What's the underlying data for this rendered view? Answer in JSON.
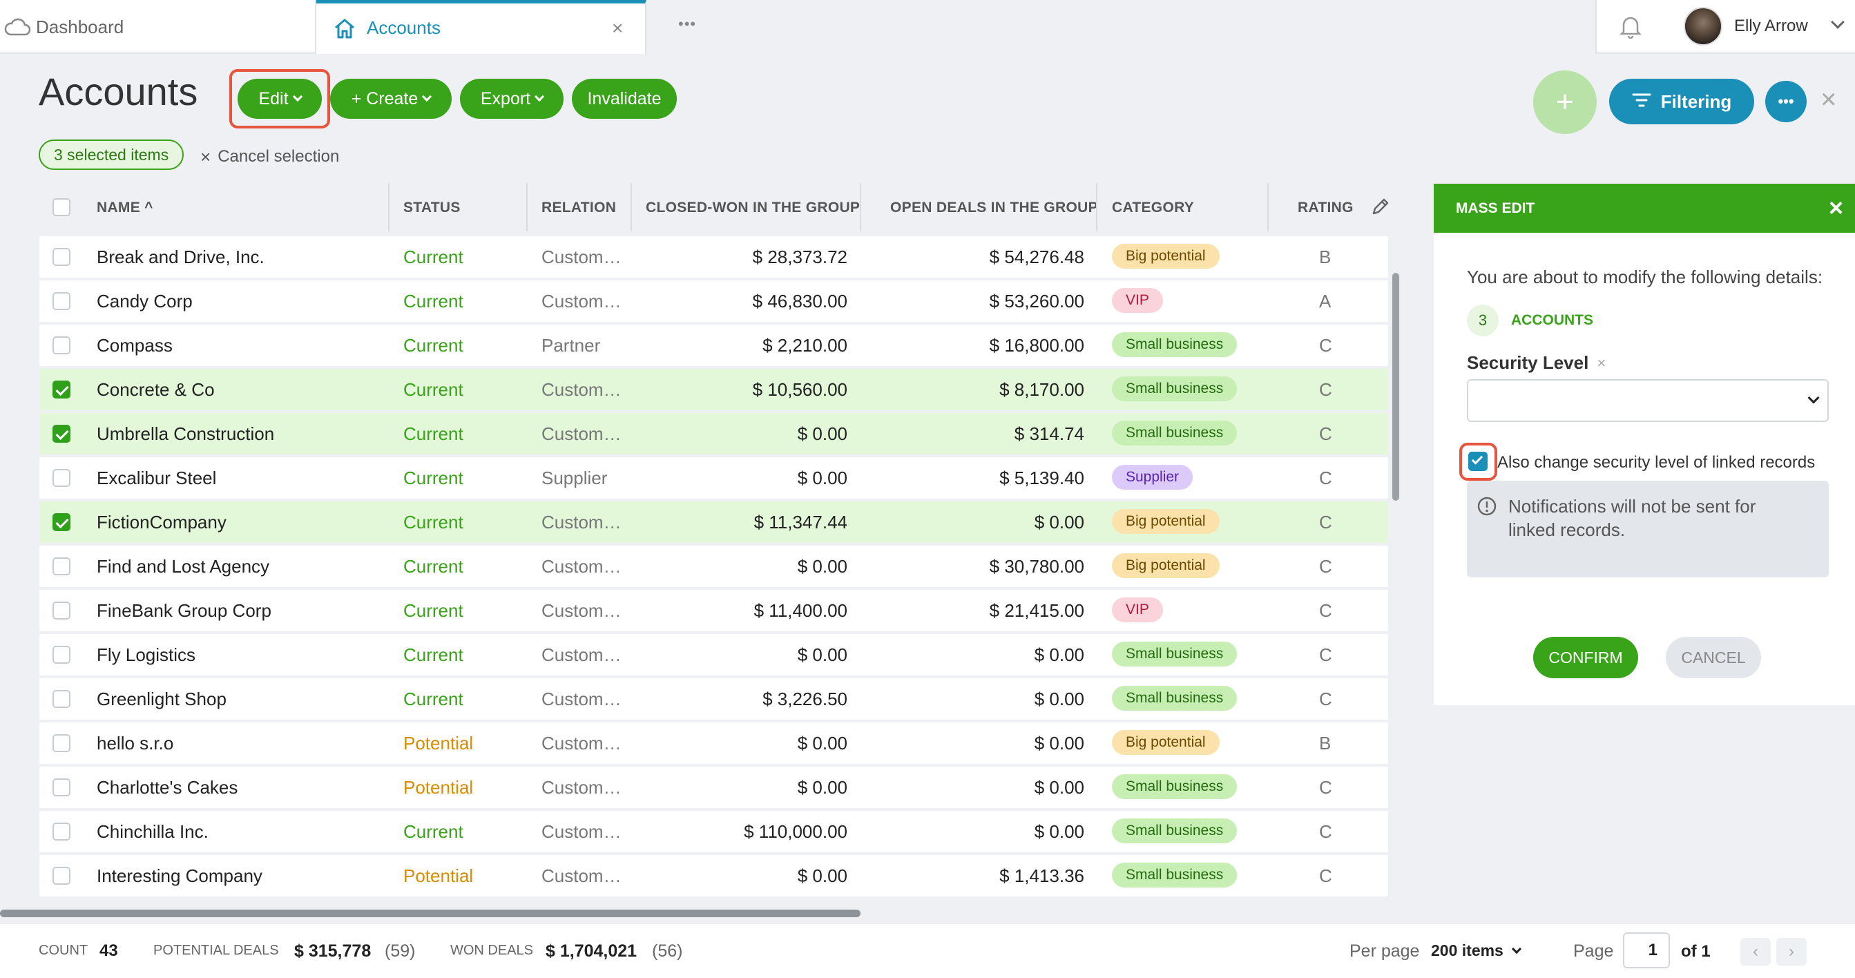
{
  "tabs": {
    "dashboard": "Dashboard",
    "accounts": "Accounts",
    "more": "•••"
  },
  "user": {
    "name": "Elly Arrow"
  },
  "page": {
    "title": "Accounts"
  },
  "toolbar": {
    "edit": "Edit",
    "create": "+ Create",
    "export": "Export",
    "invalidate": "Invalidate",
    "filtering": "Filtering"
  },
  "selection": {
    "count_label": "3 selected items",
    "cancel_label": "Cancel selection"
  },
  "columns": {
    "name": "NAME ^",
    "status": "STATUS",
    "relation": "RELATION",
    "closed_won": "CLOSED-WON IN THE GROUP",
    "open_deals": "OPEN DEALS IN THE GROUP",
    "category": "CATEGORY",
    "rating": "RATING"
  },
  "colors": {
    "accent_green": "#39a319",
    "accent_blue": "#1a8fb7",
    "highlight": "#e8553f",
    "selected_row": "#e3f7d9"
  },
  "rows": [
    {
      "name": "Break and Drive, Inc.",
      "status": "Current",
      "relation": "Custom…",
      "closed_won": "$ 28,373.72",
      "open_deals": "$ 54,276.48",
      "category": "Big potential",
      "rating": "B",
      "selected": false
    },
    {
      "name": "Candy Corp",
      "status": "Current",
      "relation": "Custom…",
      "closed_won": "$ 46,830.00",
      "open_deals": "$ 53,260.00",
      "category": "VIP",
      "rating": "A",
      "selected": false
    },
    {
      "name": "Compass",
      "status": "Current",
      "relation": "Partner",
      "closed_won": "$ 2,210.00",
      "open_deals": "$ 16,800.00",
      "category": "Small business",
      "rating": "C",
      "selected": false
    },
    {
      "name": "Concrete & Co",
      "status": "Current",
      "relation": "Custom…",
      "closed_won": "$ 10,560.00",
      "open_deals": "$ 8,170.00",
      "category": "Small business",
      "rating": "C",
      "selected": true
    },
    {
      "name": "Umbrella Construction",
      "status": "Current",
      "relation": "Custom…",
      "closed_won": "$ 0.00",
      "open_deals": "$ 314.74",
      "category": "Small business",
      "rating": "C",
      "selected": true
    },
    {
      "name": "Excalibur Steel",
      "status": "Current",
      "relation": "Supplier",
      "closed_won": "$ 0.00",
      "open_deals": "$ 5,139.40",
      "category": "Supplier",
      "rating": "C",
      "selected": false
    },
    {
      "name": "FictionCompany",
      "status": "Current",
      "relation": "Custom…",
      "closed_won": "$ 11,347.44",
      "open_deals": "$ 0.00",
      "category": "Big potential",
      "rating": "C",
      "selected": true
    },
    {
      "name": "Find and Lost Agency",
      "status": "Current",
      "relation": "Custom…",
      "closed_won": "$ 0.00",
      "open_deals": "$ 30,780.00",
      "category": "Big potential",
      "rating": "C",
      "selected": false
    },
    {
      "name": "FineBank Group Corp",
      "status": "Current",
      "relation": "Custom…",
      "closed_won": "$ 11,400.00",
      "open_deals": "$ 21,415.00",
      "category": "VIP",
      "rating": "C",
      "selected": false
    },
    {
      "name": "Fly Logistics",
      "status": "Current",
      "relation": "Custom…",
      "closed_won": "$ 0.00",
      "open_deals": "$ 0.00",
      "category": "Small business",
      "rating": "C",
      "selected": false
    },
    {
      "name": "Greenlight Shop",
      "status": "Current",
      "relation": "Custom…",
      "closed_won": "$ 3,226.50",
      "open_deals": "$ 0.00",
      "category": "Small business",
      "rating": "C",
      "selected": false
    },
    {
      "name": "hello s.r.o",
      "status": "Potential",
      "relation": "Custom…",
      "closed_won": "$ 0.00",
      "open_deals": "$ 0.00",
      "category": "Big potential",
      "rating": "B",
      "selected": false
    },
    {
      "name": "Charlotte's Cakes",
      "status": "Potential",
      "relation": "Custom…",
      "closed_won": "$ 0.00",
      "open_deals": "$ 0.00",
      "category": "Small business",
      "rating": "C",
      "selected": false
    },
    {
      "name": "Chinchilla Inc.",
      "status": "Current",
      "relation": "Custom…",
      "closed_won": "$ 110,000.00",
      "open_deals": "$ 0.00",
      "category": "Small business",
      "rating": "C",
      "selected": false
    },
    {
      "name": "Interesting Company",
      "status": "Potential",
      "relation": "Custom…",
      "closed_won": "$ 0.00",
      "open_deals": "$ 1,413.36",
      "category": "Small business",
      "rating": "C",
      "selected": false
    }
  ],
  "mass_edit": {
    "title": "MASS EDIT",
    "intro": "You are about to modify the following details:",
    "count": "3",
    "entity": "ACCOUNTS",
    "field_label": "Security Level",
    "field_value": "",
    "linked_label": "Also change security level of linked records",
    "linked_checked": true,
    "notice": "Notifications will not be sent for linked records.",
    "confirm": "CONFIRM",
    "cancel": "CANCEL"
  },
  "footer": {
    "count_label": "COUNT",
    "count_value": "43",
    "potential_label": "POTENTIAL DEALS",
    "potential_value": "$ 315,778",
    "potential_count": "(59)",
    "won_label": "WON DEALS",
    "won_value": "$ 1,704,021",
    "won_count": "(56)",
    "per_page_label": "Per page",
    "per_page_value": "200 items",
    "page_label": "Page",
    "page_value": "1",
    "page_of": "of 1"
  }
}
